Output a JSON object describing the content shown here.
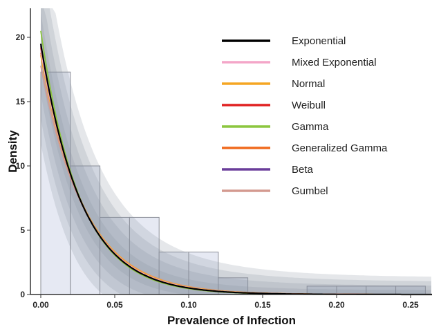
{
  "chart_data": {
    "type": "bar",
    "xlabel": "Prevalence of Infection",
    "ylabel": "Density",
    "xlim": [
      -0.004,
      0.265
    ],
    "ylim": [
      0,
      22
    ],
    "x_ticks": [
      0.0,
      0.05,
      0.1,
      0.15,
      0.2,
      0.25
    ],
    "x_tick_labels": [
      "0.00",
      "0.05",
      "0.10",
      "0.15",
      "0.20",
      "0.25"
    ],
    "y_ticks": [
      0,
      5,
      10,
      15,
      20
    ],
    "y_tick_labels": [
      "0",
      "5",
      "10",
      "15",
      "20"
    ],
    "grid": false,
    "legend_position": "top-right",
    "histogram": {
      "bin_width": 0.02,
      "bin_starts": [
        0.0,
        0.02,
        0.04,
        0.06,
        0.08,
        0.1,
        0.12,
        0.14,
        0.16,
        0.18,
        0.2,
        0.22,
        0.24
      ],
      "values": [
        17.3,
        10.0,
        6.0,
        6.0,
        3.3,
        3.3,
        1.3,
        0.0,
        0.0,
        0.65,
        0.65,
        0.65,
        0.65
      ],
      "fill": "#e6e9f3",
      "stroke": "#8a8d96"
    },
    "confidence_band": {
      "color": "#8a90a0"
    },
    "series": [
      {
        "name": "Exponential",
        "color": "#000000",
        "y0": 19.5,
        "rate": 36.5
      },
      {
        "name": "Mixed Exponential",
        "color": "#f4a6c8",
        "y0": 19.0,
        "rate": 35.5
      },
      {
        "name": "Normal",
        "color": "#f5a623",
        "y0": 18.6,
        "rate": 34.5
      },
      {
        "name": "Weibull",
        "color": "#e02020",
        "y0": 19.2,
        "rate": 36.0
      },
      {
        "name": "Gamma",
        "color": "#8cc63f",
        "y0": 20.5,
        "rate": 38.0
      },
      {
        "name": "Generalized Gamma",
        "color": "#f06a1d",
        "y0": 18.8,
        "rate": 35.0
      },
      {
        "name": "Beta",
        "color": "#6a3d9a",
        "y0": 19.3,
        "rate": 36.2
      },
      {
        "name": "Gumbel",
        "color": "#d49a90",
        "y0": 17.8,
        "rate": 33.5
      }
    ]
  }
}
